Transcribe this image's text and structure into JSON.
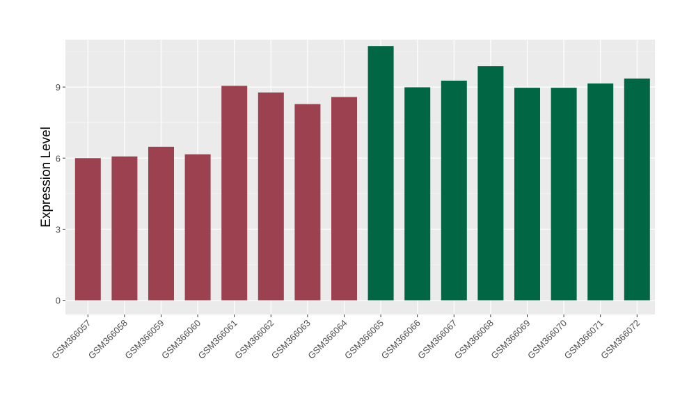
{
  "chart_data": {
    "type": "bar",
    "title": "",
    "xlabel": "",
    "ylabel": "Expression Level",
    "ylim": [
      -0.6,
      11.0
    ],
    "yticks": [
      0,
      3,
      6,
      9
    ],
    "ytick_labels": [
      "0",
      "3",
      "6",
      "9"
    ],
    "grid": true,
    "legend": "none",
    "categories": [
      "GSM366057",
      "GSM366058",
      "GSM366059",
      "GSM366060",
      "GSM366061",
      "GSM366062",
      "GSM366063",
      "GSM366064",
      "GSM366065",
      "GSM366066",
      "GSM366067",
      "GSM366068",
      "GSM366069",
      "GSM366070",
      "GSM366071",
      "GSM366072"
    ],
    "values": [
      6.0,
      6.07,
      6.48,
      6.16,
      9.05,
      8.77,
      8.28,
      8.58,
      10.73,
      8.99,
      9.27,
      9.88,
      8.97,
      8.97,
      9.15,
      9.36
    ],
    "colors": [
      "#9b4150",
      "#9b4150",
      "#9b4150",
      "#9b4150",
      "#9b4150",
      "#9b4150",
      "#9b4150",
      "#9b4150",
      "#006644",
      "#006644",
      "#006644",
      "#006644",
      "#006644",
      "#006644",
      "#006644",
      "#006644"
    ]
  },
  "style": {
    "panel_background": "#ebebeb",
    "grid_major": "#ffffff",
    "grid_minor": "#f5f5f5",
    "axis_text": "#4d4d4d",
    "axis_title": "#000000"
  }
}
